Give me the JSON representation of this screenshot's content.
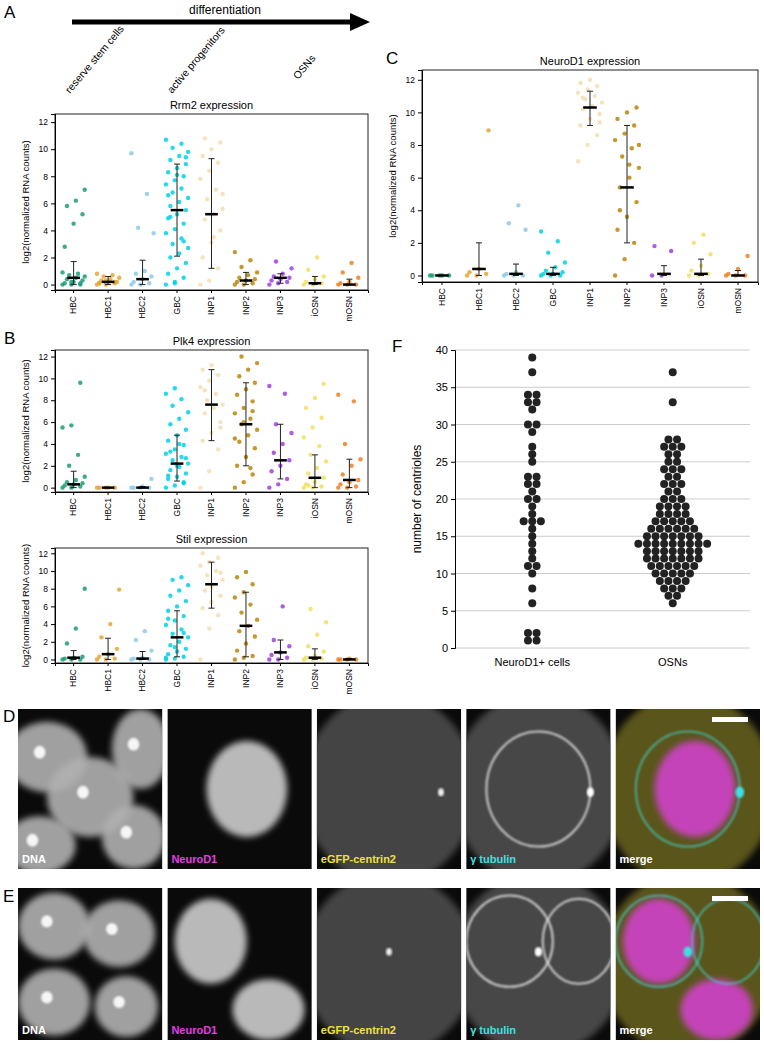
{
  "chart_data": [
    {
      "type": "strip",
      "title": "Rrm2 expression",
      "ylabel": "log2(normalized RNA counts)",
      "categories": [
        "HBC",
        "HBC1",
        "HBC2",
        "GBC",
        "INP1",
        "INP2",
        "INP3",
        "iOSN",
        "mOSN"
      ],
      "colors": [
        "#1b9e77",
        "#e6a532",
        "#8ecae6",
        "#00d2e6",
        "#f5deb3",
        "#b8860b",
        "#a040e0",
        "#f0e060",
        "#f08020"
      ],
      "ylim": [
        -0.4,
        12.6
      ],
      "yticks": [
        0,
        2,
        4,
        6,
        8,
        10,
        12
      ],
      "values": [
        [
          0,
          0,
          0,
          0.1,
          0.2,
          0.3,
          0.4,
          0.5,
          0.6,
          0.7,
          0.8,
          0.9,
          0.2,
          0.1,
          2.8,
          4.5,
          5.2,
          5.8,
          6.2,
          7.0
        ],
        [
          0,
          0,
          0.1,
          0.1,
          0.2,
          0.2,
          0.3,
          0.4,
          0.5,
          0.6,
          0.7,
          0.8,
          0.3,
          0.2,
          0.1
        ],
        [
          0,
          0,
          0.1,
          0.2,
          0.4,
          0.6,
          0.8,
          1.0,
          3.8,
          4.2,
          6.7,
          9.7
        ],
        [
          0,
          0.2,
          0.5,
          0.8,
          1.2,
          1.6,
          2.0,
          2.3,
          2.7,
          3.0,
          3.4,
          3.8,
          4.1,
          4.5,
          4.9,
          5.2,
          5.5,
          5.8,
          6.1,
          6.4,
          6.8,
          7.1,
          7.4,
          7.7,
          8.0,
          8.3,
          8.6,
          8.9,
          9.2,
          9.5,
          9.8,
          10.1,
          10.4,
          10.7,
          0.1,
          3.2,
          6.6,
          8.1,
          9.4,
          5.0
        ],
        [
          0,
          0.3,
          1.2,
          2.0,
          3.1,
          4.0,
          4.8,
          5.2,
          5.6,
          6.3,
          7.0,
          7.8,
          8.4,
          9.0,
          9.5,
          10.0,
          10.5,
          10.8,
          3.5,
          6.7
        ],
        [
          0,
          0,
          0.1,
          0.2,
          0.3,
          0.4,
          0.5,
          0.7,
          0.9,
          1.3,
          1.8,
          2.4
        ],
        [
          0,
          0.1,
          0.2,
          0.3,
          0.4,
          0.5,
          0.6,
          0.8,
          1.2,
          1.7
        ],
        [
          0,
          0,
          0.1,
          0.2,
          0.4,
          0.6,
          1.1,
          2.0
        ],
        [
          0,
          0,
          0,
          0.1,
          0.2,
          0.5,
          0.9,
          1.6
        ]
      ],
      "medians": [
        0.5,
        0.2,
        0.4,
        5.5,
        5.2,
        0.3,
        0.5,
        0.1,
        0
      ],
      "errors": [
        [
          0,
          1.7
        ],
        [
          0,
          0.6
        ],
        [
          0,
          1.8
        ],
        [
          2.1,
          8.9
        ],
        [
          1.2,
          9.3
        ],
        [
          0,
          0.9
        ],
        [
          0.1,
          0.8
        ],
        [
          0,
          0.6
        ],
        [
          0,
          0.4
        ]
      ]
    },
    {
      "type": "strip",
      "title": "Plk4 expression",
      "ylabel": "log2(normalized RNA counts)",
      "categories": [
        "HBC",
        "HBC1",
        "HBC2",
        "GBC",
        "INP1",
        "INP2",
        "INP3",
        "iOSN",
        "mOSN"
      ],
      "colors": [
        "#1b9e77",
        "#e6a532",
        "#8ecae6",
        "#00d2e6",
        "#f5deb3",
        "#b8860b",
        "#a040e0",
        "#f0e060",
        "#f08020"
      ],
      "ylim": [
        -0.4,
        12.6
      ],
      "yticks": [
        0,
        2,
        4,
        6,
        8,
        10,
        12
      ],
      "values": [
        [
          0,
          0,
          0.1,
          0.2,
          0.3,
          0.4,
          0.5,
          0.7,
          1.0,
          2.0,
          3.0,
          5.5,
          5.7,
          9.6
        ],
        [
          0,
          0,
          0,
          0,
          0
        ],
        [
          0,
          0,
          0,
          0,
          0.1,
          0.8
        ],
        [
          0,
          0.2,
          0.5,
          0.8,
          1.0,
          1.3,
          1.6,
          1.9,
          2.2,
          2.5,
          2.8,
          3.1,
          3.5,
          3.9,
          4.3,
          4.8,
          5.3,
          5.8,
          6.3,
          6.9,
          7.5,
          8.1,
          8.6,
          9.1,
          0.4,
          1.1,
          2.0,
          2.7,
          3.3,
          4.0
        ],
        [
          0,
          1.5,
          3.5,
          4.3,
          5.0,
          6.0,
          6.8,
          7.3,
          7.6,
          8.0,
          8.6,
          9.2,
          9.8,
          10.3,
          10.8,
          11.2,
          5.5,
          8.9
        ],
        [
          0,
          0.5,
          1.2,
          2.0,
          2.8,
          3.6,
          4.2,
          4.8,
          5.3,
          5.8,
          6.3,
          6.8,
          7.3,
          7.9,
          8.5,
          9.0,
          9.6,
          10.2,
          10.8,
          11.4,
          12.0,
          1.8,
          4.5,
          6.0,
          7.0
        ],
        [
          0,
          0.3,
          0.8,
          1.5,
          2.0,
          2.5,
          3.2,
          4.0,
          5.0,
          5.8,
          8.6,
          9.3
        ],
        [
          0,
          0,
          0.1,
          0.3,
          0.5,
          0.9,
          1.3,
          1.8,
          2.4,
          3.0,
          3.8,
          4.6,
          5.5,
          6.4,
          7.3,
          8.2,
          9.5,
          0.2
        ],
        [
          0,
          0,
          0.1,
          0.3,
          0.5,
          0.7,
          1.2,
          2.0,
          2.6,
          4.0,
          7.9,
          8.5
        ]
      ],
      "medians": [
        0.3,
        0,
        0,
        2.2,
        7.6,
        5.8,
        2.5,
        0.9,
        0.7
      ],
      "errors": [
        [
          0,
          1.5
        ],
        [
          0,
          0
        ],
        [
          0,
          0.1
        ],
        [
          0.6,
          4.8
        ],
        [
          4.3,
          10.8
        ],
        [
          2.0,
          9.6
        ],
        [
          0.8,
          5.8
        ],
        [
          0,
          3.0
        ],
        [
          0,
          2.6
        ]
      ]
    },
    {
      "type": "strip",
      "title": "Stil expression",
      "ylabel": "log2(normalized RNA counts)",
      "categories": [
        "HBC",
        "HBC1",
        "HBC2",
        "GBC",
        "INP1",
        "INP2",
        "INP3",
        "iOSN",
        "mOSN"
      ],
      "colors": [
        "#1b9e77",
        "#e6a532",
        "#8ecae6",
        "#00d2e6",
        "#f5deb3",
        "#b8860b",
        "#a040e0",
        "#f0e060",
        "#f08020"
      ],
      "ylim": [
        -0.4,
        12.6
      ],
      "yticks": [
        0,
        2,
        4,
        6,
        8,
        10,
        12
      ],
      "values": [
        [
          0,
          0,
          0,
          0.1,
          0.2,
          0.3,
          1.8,
          3.5,
          8.0
        ],
        [
          0,
          0,
          0.1,
          0.3,
          0.6,
          1.2,
          2.5,
          4.0,
          7.9
        ],
        [
          0,
          0,
          0,
          0.1,
          0.2,
          1.0,
          2.2,
          3.2
        ],
        [
          0,
          0.1,
          0.3,
          0.6,
          0.9,
          1.2,
          1.6,
          2.0,
          2.5,
          2.9,
          3.4,
          3.9,
          4.4,
          4.9,
          5.5,
          6.0,
          6.6,
          7.2,
          7.8,
          8.4,
          9.0,
          9.3,
          0.2,
          1.4,
          3.0,
          4.6
        ],
        [
          0,
          3.5,
          5.0,
          5.8,
          6.5,
          7.2,
          7.8,
          8.5,
          9.0,
          9.5,
          10.0,
          10.6,
          11.0,
          11.5,
          12.0,
          8.2,
          9.8
        ],
        [
          0,
          0.2,
          0.4,
          1.0,
          1.8,
          2.6,
          3.2,
          3.8,
          4.5,
          5.3,
          6.2,
          7.0,
          7.6,
          8.5,
          9.3,
          9.9
        ],
        [
          0,
          0,
          0.2,
          0.5,
          0.8,
          1.5,
          2.2,
          6.0
        ],
        [
          0,
          0,
          0.1,
          0.2,
          0.4,
          0.9,
          1.5,
          2.8,
          4.2,
          5.7
        ],
        [
          0,
          0,
          0,
          0,
          0.1
        ]
      ],
      "medians": [
        0.2,
        0.6,
        0.1,
        2.5,
        8.5,
        3.8,
        0.8,
        0.2,
        0
      ],
      "errors": [
        [
          0,
          1.0
        ],
        [
          0,
          2.4
        ],
        [
          0,
          0.9
        ],
        [
          0.3,
          5.5
        ],
        [
          5.8,
          11.0
        ],
        [
          0.3,
          7.6
        ],
        [
          0,
          2.2
        ],
        [
          0,
          1.2
        ],
        [
          0,
          0.1
        ]
      ]
    },
    {
      "type": "strip",
      "title": "NeuroD1 expression",
      "ylabel": "log2(normalized RNA counts)",
      "categories": [
        "HBC",
        "HBC1",
        "HBC2",
        "GBC",
        "INP1",
        "INP2",
        "INP3",
        "iOSN",
        "mOSN"
      ],
      "colors": [
        "#1b9e77",
        "#e6a532",
        "#8ecae6",
        "#00d2e6",
        "#f5deb3",
        "#b8860b",
        "#a040e0",
        "#f0e060",
        "#f08020"
      ],
      "ylim": [
        -0.4,
        12.6
      ],
      "yticks": [
        0,
        2,
        4,
        6,
        8,
        10,
        12
      ],
      "values": [
        [
          0,
          0,
          0,
          0,
          0
        ],
        [
          0,
          0,
          0.1,
          0.2,
          0.4,
          8.9
        ],
        [
          0,
          0,
          0,
          0.1,
          0.2,
          2.8,
          3.2,
          4.3
        ],
        [
          0,
          0,
          0,
          0.1,
          0.1,
          0.2,
          0.3,
          0.5,
          0.8,
          1.4,
          2.1,
          2.7
        ],
        [
          7.0,
          8.0,
          8.6,
          9.2,
          9.6,
          9.9,
          10.2,
          10.4,
          10.6,
          10.8,
          11.0,
          11.2,
          11.4,
          11.6,
          11.8,
          12.0,
          9.4,
          10.9
        ],
        [
          0,
          1.0,
          2.0,
          2.8,
          3.6,
          4.5,
          5.4,
          6.0,
          6.6,
          7.3,
          7.8,
          8.3,
          8.7,
          9.2,
          9.6,
          10.0,
          10.3,
          4.0,
          6.8,
          8.0
        ],
        [
          0,
          0,
          1.5,
          1.8
        ],
        [
          0,
          0,
          0.1,
          0.3,
          0.6,
          1.3,
          2.0,
          2.5
        ],
        [
          0,
          0,
          0,
          0.1,
          0.4,
          1.2
        ]
      ],
      "medians": [
        0,
        0.4,
        0.1,
        0.1,
        10.3,
        5.4,
        0.1,
        0.1,
        0
      ],
      "errors": [
        [
          0,
          0
        ],
        [
          0,
          2.0
        ],
        [
          0,
          0.7
        ],
        [
          0,
          0.5
        ],
        [
          9.2,
          11.3
        ],
        [
          2.0,
          9.2
        ],
        [
          0,
          0.6
        ],
        [
          0,
          1.0
        ],
        [
          0,
          0.3
        ]
      ]
    },
    {
      "type": "beeswarm",
      "ylabel": "number of centrioles",
      "color": "#222222",
      "grid": true,
      "categories": [
        "NeuroD1+ cells",
        "OSNs"
      ],
      "ylim": [
        0,
        40
      ],
      "yticks": [
        0,
        5,
        10,
        15,
        20,
        25,
        30,
        35,
        40
      ],
      "values": [
        [
          39,
          37,
          34,
          34,
          33,
          33,
          32,
          30,
          30,
          29,
          27,
          26,
          25,
          23,
          23,
          22,
          22,
          21,
          20,
          20,
          19,
          18,
          17,
          17,
          17,
          16,
          15,
          14,
          13,
          12,
          11,
          11,
          10,
          8,
          6,
          2,
          2,
          1,
          1
        ],
        [
          37,
          33,
          28,
          28,
          27,
          27,
          27,
          26,
          26,
          25,
          25,
          24,
          24,
          24,
          23,
          23,
          22,
          22,
          22,
          21,
          21,
          20,
          20,
          20,
          19,
          19,
          19,
          19,
          18,
          18,
          18,
          18,
          17,
          17,
          17,
          17,
          17,
          16,
          16,
          16,
          16,
          16,
          16,
          15,
          15,
          15,
          15,
          15,
          15,
          15,
          14,
          14,
          14,
          14,
          14,
          14,
          14,
          14,
          14,
          13,
          13,
          13,
          13,
          13,
          13,
          13,
          12,
          12,
          12,
          12,
          12,
          12,
          12,
          11,
          11,
          11,
          11,
          11,
          11,
          10,
          10,
          10,
          10,
          10,
          9,
          9,
          9,
          9,
          8,
          8,
          8,
          7,
          7,
          6
        ]
      ]
    }
  ],
  "panel_labels": [
    "A",
    "B",
    "C",
    "D",
    "E",
    "F"
  ],
  "differentiation": {
    "title": "differentiation",
    "stages": [
      "reserve stem cells",
      "active progenitors",
      "OSNs"
    ]
  },
  "image_rows": [
    {
      "channels": [
        "DNA",
        "NeuroD1",
        "eGFP-centrin2",
        "γ tubulin",
        "merge"
      ],
      "colors": [
        "#ffffff",
        "#e040e0",
        "#f0e040",
        "#40e0e0",
        "#ffffff"
      ]
    },
    {
      "channels": [
        "DNA",
        "NeuroD1",
        "eGFP-centrin2",
        "γ tubulin",
        "merge"
      ],
      "colors": [
        "#ffffff",
        "#e040e0",
        "#f0e040",
        "#40e0e0",
        "#ffffff"
      ]
    }
  ]
}
